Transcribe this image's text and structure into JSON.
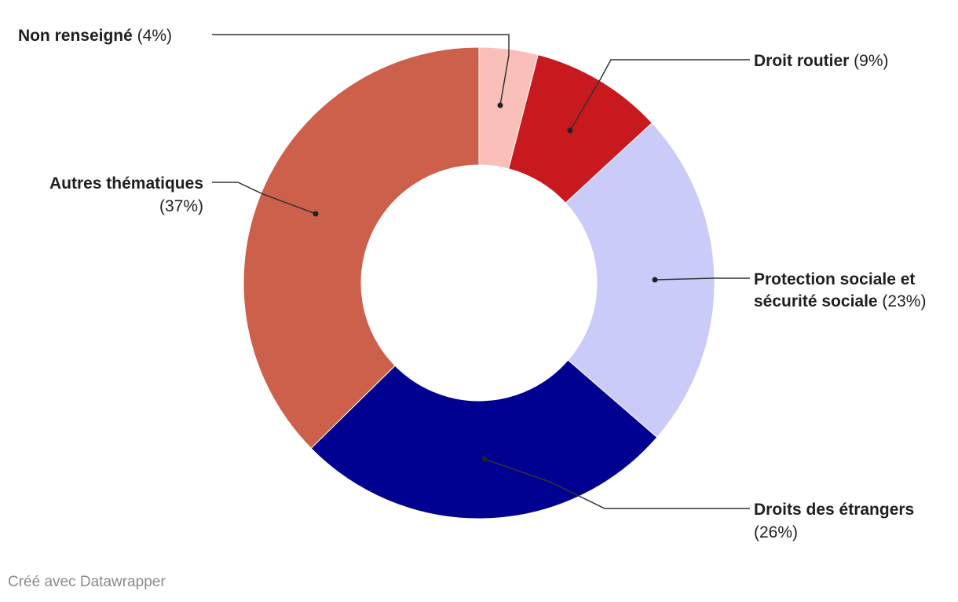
{
  "chart_data": {
    "type": "pie",
    "style": "donut",
    "categories": [
      "Non renseigné",
      "Droit routier",
      "Protection sociale et sécurité sociale",
      "Droits des étrangers",
      "Autres thématiques"
    ],
    "values": [
      4,
      9,
      23,
      26,
      37
    ],
    "colors": [
      "#fbbfb9",
      "#c8191f",
      "#cbcbf9",
      "#000091",
      "#cd604a"
    ],
    "labels": [
      {
        "line1_bold": "Non renseigné",
        "line1_normal": " (4%)",
        "line2_bold": "",
        "line2_normal": ""
      },
      {
        "line1_bold": "Droit routier",
        "line1_normal": " (9%)",
        "line2_bold": "",
        "line2_normal": ""
      },
      {
        "line1_bold": "Protection sociale et",
        "line1_normal": "",
        "line2_bold": "sécurité sociale",
        "line2_normal": " (23%)"
      },
      {
        "line1_bold": "Droits des étrangers",
        "line1_normal": "",
        "line2_bold": "",
        "line2_normal": "(26%)"
      },
      {
        "line1_bold": "Autres thématiques",
        "line1_normal": "",
        "line2_bold": "",
        "line2_normal": "(37%)"
      }
    ],
    "legend": "labels beside slices with leader lines"
  },
  "footer": {
    "credit": "Créé avec Datawrapper"
  }
}
